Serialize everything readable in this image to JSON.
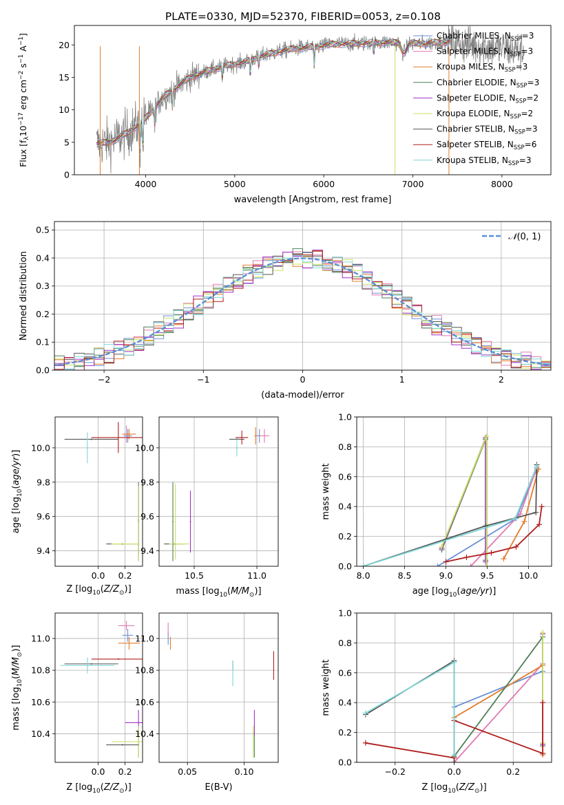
{
  "figure": {
    "title": "PLATE=0330, MJD=52370, FIBERID=0053, z=0.108"
  },
  "colors": {
    "Chabrier MILES": "#6a8fd6",
    "Salpeter MILES": "#e07ab0",
    "Kroupa MILES": "#e07b2a",
    "Chabrier ELODIE": "#4f7f55",
    "Salpeter ELODIE": "#a12fc6",
    "Kroupa ELODIE": "#c8e060",
    "Chabrier STELIB": "#555555",
    "Salpeter STELIB": "#b01c1c",
    "Kroupa STELIB": "#7fd6d6",
    "spectrum": "#808080",
    "gauss": "#5a8fd6"
  },
  "chart_data": [
    {
      "id": "spectrum",
      "type": "line",
      "xlabel": "wavelength [Angstrom, rest frame]",
      "ylabel": "Flux [f",
      "xlim": [
        3200,
        8550
      ],
      "ylim": [
        0,
        23
      ],
      "xticks": [
        4000,
        5000,
        6000,
        7000,
        8000
      ],
      "yticks": [
        0,
        5,
        10,
        15,
        20
      ],
      "grid": false,
      "legend_position": "upper right",
      "legend": [
        {
          "model": "Chabrier MILES",
          "label": "Chabrier MILES, N",
          "sub": "SSP",
          "tail": "=3"
        },
        {
          "model": "Salpeter MILES",
          "label": "Salpeter MILES, N",
          "sub": "SSP",
          "tail": "=3"
        },
        {
          "model": "Kroupa MILES",
          "label": "Kroupa MILES, N",
          "sub": "SSP",
          "tail": "=3"
        },
        {
          "model": "Chabrier ELODIE",
          "label": "Chabrier ELODIE, N",
          "sub": "SSP",
          "tail": "=3"
        },
        {
          "model": "Salpeter ELODIE",
          "label": "Salpeter ELODIE, N",
          "sub": "SSP",
          "tail": "=2"
        },
        {
          "model": "Kroupa ELODIE",
          "label": "Kroupa ELODIE, N",
          "sub": "SSP",
          "tail": "=2"
        },
        {
          "model": "Chabrier STELIB",
          "label": "Chabrier STELIB, N",
          "sub": "SSP",
          "tail": "=3"
        },
        {
          "model": "Salpeter STELIB",
          "label": "Salpeter STELIB, N",
          "sub": "SSP",
          "tail": "=6"
        },
        {
          "model": "Kroupa STELIB",
          "label": "Kroupa STELIB, N",
          "sub": "SSP",
          "tail": "=3"
        }
      ],
      "continuum": [
        [
          3450,
          4.8
        ],
        [
          3600,
          5.0
        ],
        [
          3800,
          6.5
        ],
        [
          3950,
          8.0
        ],
        [
          4050,
          9.5
        ],
        [
          4200,
          12.0
        ],
        [
          4350,
          13.5
        ],
        [
          4500,
          15.0
        ],
        [
          4700,
          16.0
        ],
        [
          4900,
          16.8
        ],
        [
          5100,
          17.3
        ],
        [
          5300,
          18.3
        ],
        [
          5500,
          19.0
        ],
        [
          5700,
          19.5
        ],
        [
          5900,
          19.7
        ],
        [
          6100,
          20.1
        ],
        [
          6300,
          20.2
        ],
        [
          6500,
          20.3
        ],
        [
          6700,
          20.4
        ],
        [
          6900,
          20.3
        ],
        [
          7100,
          20.2
        ],
        [
          7300,
          20.4
        ],
        [
          7400,
          20.5
        ]
      ],
      "absorption_lines": [
        [
          3934,
          5.0
        ],
        [
          3969,
          4.5
        ],
        [
          4102,
          3.0
        ],
        [
          4300,
          3.0
        ],
        [
          4861,
          2.0
        ],
        [
          5175,
          2.5
        ],
        [
          5270,
          1.5
        ],
        [
          5893,
          3.0
        ],
        [
          6563,
          1.5
        ]
      ],
      "spikes": [
        [
          3490,
          0
        ],
        [
          3930,
          0
        ],
        [
          6800,
          0
        ],
        [
          7405,
          0
        ]
      ],
      "models_extent": [
        3450,
        7420
      ],
      "data_extent": [
        3450,
        8250
      ]
    },
    {
      "id": "residuals",
      "type": "step",
      "xlabel": "(data-model)/error",
      "ylabel": "Normed distribution",
      "xlim": [
        -2.5,
        2.5
      ],
      "ylim": [
        0,
        0.53
      ],
      "xticks": [
        -2,
        -1,
        0,
        1,
        2
      ],
      "xtick_labels": [
        "−2",
        "−1",
        "0",
        "1",
        "2"
      ],
      "yticks": [
        0.0,
        0.1,
        0.2,
        0.3,
        0.4,
        0.5
      ],
      "grid": true,
      "bin_width": 0.1,
      "gaussian": {
        "label": "(0, 1)",
        "mean": 0,
        "sigma": 1
      },
      "legend_position": "upper right"
    },
    {
      "id": "age_vs_Z",
      "type": "errorbar",
      "xlabel": "Z [log",
      "ylabel": "age  [log",
      "xlim": [
        -0.32,
        0.33
      ],
      "ylim": [
        9.31,
        10.18
      ],
      "xticks": [
        0.0,
        0.2
      ],
      "yticks": [
        9.4,
        9.6,
        9.8,
        10.0
      ],
      "grid": true,
      "points": [
        {
          "m": "Chabrier MILES",
          "x": 0.22,
          "y": 10.07,
          "ex": 0.03,
          "ey": 0.04
        },
        {
          "m": "Salpeter MILES",
          "x": 0.21,
          "y": 10.08,
          "ex": 0.03,
          "ey": 0.05
        },
        {
          "m": "Kroupa MILES",
          "x": 0.23,
          "y": 10.08,
          "ex": 0.05,
          "ey": 0.03
        },
        {
          "m": "Chabrier ELODIE",
          "x": 0.3,
          "y": 9.57,
          "ex": 0.005,
          "ey": 0.23
        },
        {
          "m": "Salpeter ELODIE",
          "x": 0.3,
          "y": 9.58,
          "ex": 0.005,
          "ey": 0.2
        },
        {
          "m": "Kroupa ELODIE",
          "x": 0.3,
          "y": 9.56,
          "ex": 0.005,
          "ey": 0.22
        },
        {
          "m": "Chabrier STELIB",
          "x": 0.18,
          "y": 9.44,
          "ex": 0.12,
          "ey": 0.005
        },
        {
          "m": "Chabrier STELIB",
          "x": -0.05,
          "y": 10.05,
          "ex": 0.2,
          "ey": 0.005
        },
        {
          "m": "Salpeter STELIB",
          "x": 0.15,
          "y": 10.06,
          "ex": 0.2,
          "ey": 0.09
        },
        {
          "m": "Kroupa STELIB",
          "x": -0.08,
          "y": 10.0,
          "ex": 0.01,
          "ey": 0.09
        },
        {
          "m": "Kroupa ELODIE",
          "x": 0.2,
          "y": 9.44,
          "ex": 0.1,
          "ey": 0.005
        }
      ]
    },
    {
      "id": "age_vs_mass",
      "type": "errorbar",
      "xlabel": "mass [log",
      "ylabel": "",
      "xlim": [
        10.22,
        11.17
      ],
      "ylim": [
        9.31,
        10.18
      ],
      "xticks": [
        10.5,
        11.0
      ],
      "yticks": [
        9.4,
        9.6,
        9.8,
        10.0
      ],
      "grid": true,
      "points": [
        {
          "m": "Chabrier MILES",
          "x": 11.02,
          "y": 10.07,
          "ex": 0.02,
          "ey": 0.04
        },
        {
          "m": "Salpeter MILES",
          "x": 11.06,
          "y": 10.07,
          "ex": 0.04,
          "ey": 0.04
        },
        {
          "m": "Kroupa MILES",
          "x": 10.99,
          "y": 10.07,
          "ex": 0.01,
          "ey": 0.05
        },
        {
          "m": "Chabrier ELODIE",
          "x": 10.33,
          "y": 9.57,
          "ex": 0.005,
          "ey": 0.23
        },
        {
          "m": "Salpeter ELODIE",
          "x": 10.47,
          "y": 9.57,
          "ex": 0.005,
          "ey": 0.18
        },
        {
          "m": "Kroupa ELODIE",
          "x": 10.35,
          "y": 9.57,
          "ex": 0.005,
          "ey": 0.22
        },
        {
          "m": "Chabrier STELIB",
          "x": 10.34,
          "y": 9.44,
          "ex": 0.08,
          "ey": 0.005
        },
        {
          "m": "Chabrier STELIB",
          "x": 10.84,
          "y": 10.05,
          "ex": 0.06,
          "ey": 0.005
        },
        {
          "m": "Salpeter STELIB",
          "x": 10.88,
          "y": 10.06,
          "ex": 0.05,
          "ey": 0.04
        },
        {
          "m": "Kroupa STELIB",
          "x": 10.84,
          "y": 10.0,
          "ex": 0.01,
          "ey": 0.05
        },
        {
          "m": "Kroupa ELODIE",
          "x": 10.38,
          "y": 9.44,
          "ex": 0.08,
          "ey": 0.005
        }
      ]
    },
    {
      "id": "weight_vs_age",
      "type": "line",
      "xlabel": "age  [log",
      "ylabel": "mass weight",
      "xlim": [
        7.92,
        10.28
      ],
      "ylim": [
        0,
        1.0
      ],
      "xticks": [
        8.0,
        8.5,
        9.0,
        9.5,
        10.0
      ],
      "yticks": [
        0.0,
        0.2,
        0.4,
        0.6,
        0.8,
        1.0
      ],
      "grid": true,
      "series": [
        {
          "m": "Chabrier MILES",
          "pts": [
            [
              8.9,
              0.0
            ],
            [
              9.85,
              0.32
            ],
            [
              10.1,
              0.65
            ]
          ]
        },
        {
          "m": "Salpeter MILES",
          "pts": [
            [
              9.3,
              0.0
            ],
            [
              9.9,
              0.35
            ],
            [
              10.1,
              0.66
            ]
          ]
        },
        {
          "m": "Kroupa MILES",
          "pts": [
            [
              9.7,
              0.05
            ],
            [
              9.95,
              0.3
            ],
            [
              10.12,
              0.65
            ]
          ]
        },
        {
          "m": "Chabrier ELODIE",
          "pts": [
            [
              8.95,
              0.11
            ],
            [
              9.48,
              0.85
            ],
            [
              9.48,
              0.04
            ]
          ]
        },
        {
          "m": "Salpeter ELODIE",
          "pts": [
            [
              8.95,
              0.12
            ],
            [
              9.48,
              0.86
            ],
            [
              9.48,
              0.03
            ]
          ]
        },
        {
          "m": "Kroupa ELODIE",
          "pts": [
            [
              8.95,
              0.13
            ],
            [
              9.49,
              0.87
            ],
            [
              9.49,
              0.0
            ]
          ]
        },
        {
          "m": "Chabrier STELIB",
          "pts": [
            [
              8.0,
              0.0
            ],
            [
              9.48,
              0.27
            ],
            [
              10.09,
              0.36
            ],
            [
              10.1,
              0.68
            ]
          ]
        },
        {
          "m": "Salpeter STELIB",
          "pts": [
            [
              9.0,
              0.03
            ],
            [
              9.25,
              0.06
            ],
            [
              9.55,
              0.09
            ],
            [
              9.85,
              0.13
            ],
            [
              10.13,
              0.28
            ],
            [
              10.16,
              0.4
            ]
          ]
        },
        {
          "m": "Kroupa STELIB",
          "pts": [
            [
              8.0,
              0.0
            ],
            [
              9.84,
              0.32
            ],
            [
              10.1,
              0.67
            ]
          ]
        }
      ]
    },
    {
      "id": "mass_vs_Z",
      "type": "errorbar",
      "xlabel": "Z [log",
      "ylabel": "mass [log",
      "xlim": [
        -0.32,
        0.33
      ],
      "ylim": [
        10.22,
        11.16
      ],
      "xticks": [
        0.0,
        0.2
      ],
      "yticks": [
        10.4,
        10.6,
        10.8,
        11.0
      ],
      "grid": true,
      "points": [
        {
          "m": "Chabrier MILES",
          "x": 0.22,
          "y": 11.02,
          "ex": 0.04,
          "ey": 0.04
        },
        {
          "m": "Salpeter MILES",
          "x": 0.21,
          "y": 11.08,
          "ex": 0.06,
          "ey": 0.03
        },
        {
          "m": "Kroupa MILES",
          "x": 0.23,
          "y": 10.97,
          "ex": 0.08,
          "ey": 0.04
        },
        {
          "m": "Chabrier ELODIE",
          "x": 0.3,
          "y": 10.33,
          "ex": 0.005,
          "ey": 0.08
        },
        {
          "m": "Salpeter ELODIE",
          "x": 0.3,
          "y": 10.47,
          "ex": 0.1,
          "ey": 0.08
        },
        {
          "m": "Kroupa ELODIE",
          "x": 0.3,
          "y": 10.35,
          "ex": 0.1,
          "ey": 0.1
        },
        {
          "m": "Chabrier STELIB",
          "x": 0.18,
          "y": 10.33,
          "ex": 0.12,
          "ey": 0.005
        },
        {
          "m": "Chabrier STELIB",
          "x": -0.05,
          "y": 10.84,
          "ex": 0.2,
          "ey": 0.005
        },
        {
          "m": "Salpeter STELIB",
          "x": 0.15,
          "y": 10.87,
          "ex": 0.2,
          "ey": 0.005
        },
        {
          "m": "Kroupa STELIB",
          "x": -0.08,
          "y": 10.83,
          "ex": 0.2,
          "ey": 0.05
        },
        {
          "m": "Kroupa ELODIE",
          "x": 0.2,
          "y": 10.35,
          "ex": 0.1,
          "ey": 0.005
        }
      ]
    },
    {
      "id": "mass_vs_ebv",
      "type": "errorbar",
      "xlabel": "E(B-V)",
      "ylabel": "",
      "xlim": [
        0.025,
        0.13
      ],
      "ylim": [
        10.22,
        11.16
      ],
      "xticks": [
        0.05,
        0.1
      ],
      "yticks": [
        10.4,
        10.6,
        10.8,
        11.0
      ],
      "grid": true,
      "points": [
        {
          "m": "Chabrier MILES",
          "x": 0.033,
          "y": 11.0,
          "ex": 0.0,
          "ey": 0.04
        },
        {
          "m": "Salpeter MILES",
          "x": 0.033,
          "y": 11.06,
          "ex": 0.0,
          "ey": 0.04
        },
        {
          "m": "Kroupa MILES",
          "x": 0.035,
          "y": 10.97,
          "ex": 0.0,
          "ey": 0.04
        },
        {
          "m": "Chabrier ELODIE",
          "x": 0.109,
          "y": 10.33,
          "ex": 0.0,
          "ey": 0.08
        },
        {
          "m": "Salpeter ELODIE",
          "x": 0.109,
          "y": 10.47,
          "ex": 0.0,
          "ey": 0.08
        },
        {
          "m": "Kroupa ELODIE",
          "x": 0.108,
          "y": 10.35,
          "ex": 0.0,
          "ey": 0.1
        },
        {
          "m": "Chabrier STELIB",
          "x": 0.09,
          "y": 10.83,
          "ex": 0.0,
          "ey": 0.03
        },
        {
          "m": "Salpeter STELIB",
          "x": 0.126,
          "y": 10.83,
          "ex": 0.0,
          "ey": 0.09
        },
        {
          "m": "Kroupa STELIB",
          "x": 0.09,
          "y": 10.78,
          "ex": 0.0,
          "ey": 0.08
        }
      ]
    },
    {
      "id": "weight_vs_Z",
      "type": "line",
      "xlabel": "Z [log",
      "ylabel": "mass weight",
      "xlim": [
        -0.33,
        0.33
      ],
      "ylim": [
        0,
        1.0
      ],
      "xticks": [
        -0.2,
        0.0,
        0.2
      ],
      "xtick_labels": [
        "−0.2",
        "0.0",
        "0.2"
      ],
      "yticks": [
        0.0,
        0.2,
        0.4,
        0.6,
        0.8,
        1.0
      ],
      "grid": true,
      "series": [
        {
          "m": "Chabrier MILES",
          "pts": [
            [
              0.0,
              0.37
            ],
            [
              0.3,
              0.61
            ]
          ]
        },
        {
          "m": "Salpeter MILES",
          "pts": [
            [
              0.0,
              0.0
            ],
            [
              0.3,
              0.66
            ]
          ]
        },
        {
          "m": "Kroupa MILES",
          "pts": [
            [
              0.0,
              0.3
            ],
            [
              0.3,
              0.65
            ],
            [
              0.3,
              0.05
            ]
          ]
        },
        {
          "m": "Chabrier ELODIE",
          "pts": [
            [
              0.0,
              0.04
            ],
            [
              0.3,
              0.84
            ],
            [
              0.3,
              0.11
            ]
          ]
        },
        {
          "m": "Salpeter ELODIE",
          "pts": [
            [
              0.3,
              0.86
            ],
            [
              0.3,
              0.12
            ]
          ]
        },
        {
          "m": "Kroupa ELODIE",
          "pts": [
            [
              0.3,
              0.87
            ],
            [
              0.3,
              0.13
            ]
          ]
        },
        {
          "m": "Chabrier STELIB",
          "pts": [
            [
              -0.3,
              0.32
            ],
            [
              0.0,
              0.68
            ],
            [
              0.0,
              0.0
            ]
          ]
        },
        {
          "m": "Salpeter STELIB",
          "pts": [
            [
              -0.3,
              0.13
            ],
            [
              0.0,
              0.03
            ],
            [
              0.0,
              0.28
            ],
            [
              0.3,
              0.06
            ],
            [
              0.3,
              0.4
            ]
          ]
        },
        {
          "m": "Kroupa STELIB",
          "pts": [
            [
              -0.3,
              0.33
            ],
            [
              0.0,
              0.67
            ],
            [
              0.0,
              0.05
            ]
          ]
        }
      ]
    }
  ]
}
